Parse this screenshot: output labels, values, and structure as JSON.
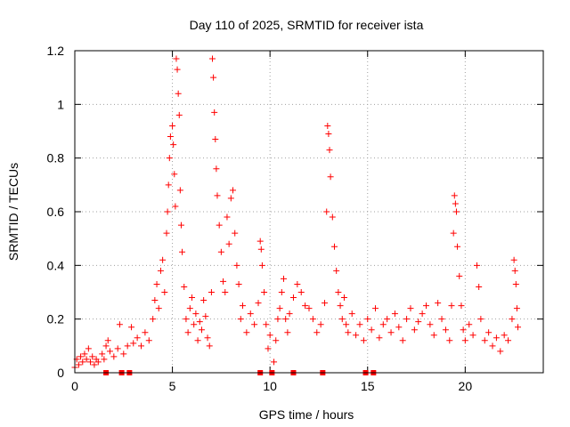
{
  "chart_data": {
    "type": "scatter",
    "title": "Day 110 of 2025, SRMTID for receiver ista",
    "xlabel": "GPS time / hours",
    "ylabel": "SRMTID / TECUs",
    "xlim": [
      0,
      24
    ],
    "ylim": [
      0,
      1.2
    ],
    "xticks": [
      0,
      5,
      10,
      15,
      20
    ],
    "xtick_labels": [
      "0",
      "5",
      "10",
      "15",
      "20"
    ],
    "yticks": [
      0,
      0.2,
      0.4,
      0.6,
      0.8,
      1.0,
      1.2
    ],
    "ytick_labels": [
      "0",
      "0.2",
      "0.4",
      "0.6",
      "0.8",
      "1",
      "1.2"
    ],
    "grid": true,
    "marker": "+",
    "colors": {
      "points": "#ff0000",
      "grid": "#a0a0a0",
      "axes": "#000000"
    },
    "series": [
      {
        "name": "SRMTID",
        "points": [
          [
            0.0,
            0.02
          ],
          [
            0.1,
            0.05
          ],
          [
            0.2,
            0.03
          ],
          [
            0.3,
            0.06
          ],
          [
            0.4,
            0.04
          ],
          [
            0.5,
            0.07
          ],
          [
            0.6,
            0.05
          ],
          [
            0.7,
            0.09
          ],
          [
            0.8,
            0.04
          ],
          [
            0.9,
            0.06
          ],
          [
            1.0,
            0.03
          ],
          [
            1.1,
            0.05
          ],
          [
            1.2,
            0.04
          ],
          [
            1.4,
            0.07
          ],
          [
            1.5,
            0.05
          ],
          [
            1.6,
            0.1
          ],
          [
            1.7,
            0.12
          ],
          [
            1.8,
            0.08
          ],
          [
            2.0,
            0.06
          ],
          [
            2.2,
            0.09
          ],
          [
            2.3,
            0.18
          ],
          [
            2.5,
            0.07
          ],
          [
            2.7,
            0.1
          ],
          [
            2.9,
            0.17
          ],
          [
            3.0,
            0.11
          ],
          [
            3.2,
            0.13
          ],
          [
            3.4,
            0.1
          ],
          [
            3.6,
            0.15
          ],
          [
            3.8,
            0.12
          ],
          [
            4.0,
            0.2
          ],
          [
            4.1,
            0.27
          ],
          [
            4.2,
            0.33
          ],
          [
            4.3,
            0.24
          ],
          [
            4.4,
            0.38
          ],
          [
            4.5,
            0.42
          ],
          [
            4.6,
            0.3
          ],
          [
            4.7,
            0.52
          ],
          [
            4.75,
            0.6
          ],
          [
            4.8,
            0.7
          ],
          [
            4.85,
            0.8
          ],
          [
            4.9,
            0.88
          ],
          [
            5.0,
            0.92
          ],
          [
            5.05,
            0.85
          ],
          [
            5.1,
            0.74
          ],
          [
            5.15,
            0.62
          ],
          [
            5.2,
            1.17
          ],
          [
            5.25,
            1.13
          ],
          [
            5.3,
            1.04
          ],
          [
            5.35,
            0.96
          ],
          [
            5.4,
            0.68
          ],
          [
            5.45,
            0.55
          ],
          [
            5.5,
            0.45
          ],
          [
            5.6,
            0.32
          ],
          [
            5.7,
            0.2
          ],
          [
            5.8,
            0.15
          ],
          [
            5.9,
            0.24
          ],
          [
            6.0,
            0.28
          ],
          [
            6.1,
            0.18
          ],
          [
            6.2,
            0.22
          ],
          [
            6.3,
            0.12
          ],
          [
            6.4,
            0.19
          ],
          [
            6.5,
            0.16
          ],
          [
            6.6,
            0.27
          ],
          [
            6.7,
            0.21
          ],
          [
            6.8,
            0.13
          ],
          [
            6.9,
            0.1
          ],
          [
            7.0,
            0.3
          ],
          [
            7.05,
            1.17
          ],
          [
            7.1,
            1.1
          ],
          [
            7.15,
            0.97
          ],
          [
            7.2,
            0.87
          ],
          [
            7.25,
            0.76
          ],
          [
            7.3,
            0.66
          ],
          [
            7.4,
            0.55
          ],
          [
            7.5,
            0.45
          ],
          [
            7.6,
            0.34
          ],
          [
            7.7,
            0.3
          ],
          [
            7.8,
            0.58
          ],
          [
            7.9,
            0.48
          ],
          [
            8.0,
            0.65
          ],
          [
            8.1,
            0.68
          ],
          [
            8.2,
            0.52
          ],
          [
            8.3,
            0.4
          ],
          [
            8.4,
            0.33
          ],
          [
            8.5,
            0.2
          ],
          [
            8.6,
            0.25
          ],
          [
            8.8,
            0.15
          ],
          [
            9.0,
            0.22
          ],
          [
            9.2,
            0.18
          ],
          [
            9.4,
            0.26
          ],
          [
            9.5,
            0.49
          ],
          [
            9.55,
            0.46
          ],
          [
            9.6,
            0.4
          ],
          [
            9.7,
            0.3
          ],
          [
            9.8,
            0.18
          ],
          [
            9.9,
            0.09
          ],
          [
            10.0,
            0.14
          ],
          [
            10.2,
            0.04
          ],
          [
            10.3,
            0.12
          ],
          [
            10.4,
            0.2
          ],
          [
            10.5,
            0.24
          ],
          [
            10.6,
            0.3
          ],
          [
            10.7,
            0.35
          ],
          [
            10.8,
            0.2
          ],
          [
            10.9,
            0.15
          ],
          [
            11.0,
            0.22
          ],
          [
            11.2,
            0.28
          ],
          [
            11.4,
            0.33
          ],
          [
            11.6,
            0.3
          ],
          [
            11.8,
            0.25
          ],
          [
            12.0,
            0.24
          ],
          [
            12.2,
            0.2
          ],
          [
            12.4,
            0.15
          ],
          [
            12.6,
            0.18
          ],
          [
            12.8,
            0.26
          ],
          [
            12.9,
            0.6
          ],
          [
            12.95,
            0.92
          ],
          [
            13.0,
            0.89
          ],
          [
            13.05,
            0.83
          ],
          [
            13.1,
            0.73
          ],
          [
            13.2,
            0.58
          ],
          [
            13.3,
            0.47
          ],
          [
            13.4,
            0.38
          ],
          [
            13.5,
            0.3
          ],
          [
            13.6,
            0.25
          ],
          [
            13.7,
            0.2
          ],
          [
            13.8,
            0.28
          ],
          [
            13.9,
            0.18
          ],
          [
            14.0,
            0.15
          ],
          [
            14.2,
            0.22
          ],
          [
            14.4,
            0.14
          ],
          [
            14.6,
            0.18
          ],
          [
            14.8,
            0.12
          ],
          [
            15.0,
            0.2
          ],
          [
            15.2,
            0.16
          ],
          [
            15.4,
            0.24
          ],
          [
            15.6,
            0.13
          ],
          [
            15.8,
            0.18
          ],
          [
            16.0,
            0.2
          ],
          [
            16.2,
            0.15
          ],
          [
            16.4,
            0.22
          ],
          [
            16.6,
            0.17
          ],
          [
            16.8,
            0.12
          ],
          [
            17.0,
            0.2
          ],
          [
            17.2,
            0.24
          ],
          [
            17.4,
            0.16
          ],
          [
            17.6,
            0.19
          ],
          [
            17.8,
            0.22
          ],
          [
            18.0,
            0.25
          ],
          [
            18.2,
            0.18
          ],
          [
            18.4,
            0.14
          ],
          [
            18.6,
            0.26
          ],
          [
            18.8,
            0.2
          ],
          [
            19.0,
            0.16
          ],
          [
            19.2,
            0.12
          ],
          [
            19.3,
            0.25
          ],
          [
            19.4,
            0.52
          ],
          [
            19.45,
            0.66
          ],
          [
            19.5,
            0.63
          ],
          [
            19.55,
            0.6
          ],
          [
            19.6,
            0.47
          ],
          [
            19.7,
            0.36
          ],
          [
            19.8,
            0.25
          ],
          [
            19.9,
            0.16
          ],
          [
            20.0,
            0.12
          ],
          [
            20.2,
            0.18
          ],
          [
            20.4,
            0.14
          ],
          [
            20.6,
            0.4
          ],
          [
            20.7,
            0.32
          ],
          [
            20.8,
            0.2
          ],
          [
            21.0,
            0.12
          ],
          [
            21.2,
            0.15
          ],
          [
            21.4,
            0.1
          ],
          [
            21.6,
            0.13
          ],
          [
            21.8,
            0.08
          ],
          [
            22.0,
            0.14
          ],
          [
            22.2,
            0.12
          ],
          [
            22.4,
            0.2
          ],
          [
            22.5,
            0.42
          ],
          [
            22.55,
            0.38
          ],
          [
            22.6,
            0.33
          ],
          [
            22.65,
            0.24
          ],
          [
            22.7,
            0.17
          ]
        ],
        "baseline_points": [
          [
            1.6,
            0.0
          ],
          [
            2.4,
            0.0
          ],
          [
            2.8,
            0.0
          ],
          [
            9.5,
            0.0
          ],
          [
            10.1,
            0.0
          ],
          [
            11.2,
            0.0
          ],
          [
            12.7,
            0.0
          ],
          [
            14.9,
            0.0
          ],
          [
            15.3,
            0.0
          ]
        ]
      }
    ]
  }
}
